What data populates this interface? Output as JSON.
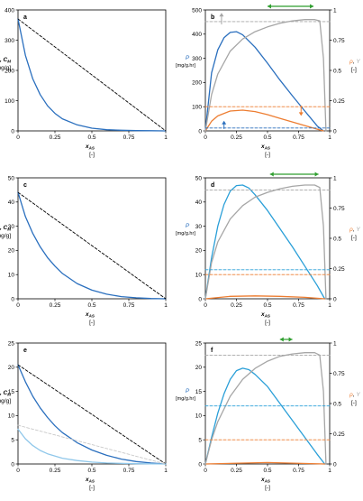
{
  "chart_data": [
    {
      "panel_label": "a",
      "type": "line",
      "ylabel": [
        "C*, C",
        "[mg/g]"
      ],
      "xlabel": [
        "x",
        "[-]"
      ],
      "xlim": [
        0,
        1
      ],
      "ylim": [
        0,
        400
      ],
      "xticks": [
        "0",
        "0.25",
        "0.5",
        "0.75",
        "1"
      ],
      "yticks": [
        "0",
        "100",
        "200",
        "300",
        "400"
      ],
      "series": [
        {
          "color": "#2a6fbe",
          "dash": false,
          "x": [
            0,
            0.05,
            0.1,
            0.15,
            0.2,
            0.25,
            0.3,
            0.4,
            0.5,
            0.6,
            0.7,
            0.8,
            0.9,
            1
          ],
          "y": [
            370,
            250,
            172,
            120,
            83,
            58,
            40,
            20,
            9,
            4,
            2,
            1,
            0.5,
            0
          ]
        },
        {
          "color": "#000000",
          "dash": true,
          "x": [
            0,
            1
          ],
          "y": [
            370,
            0
          ]
        }
      ]
    },
    {
      "panel_label": "b",
      "type": "line",
      "ylabel": [
        "P",
        "[mg/g.hr]"
      ],
      "y2label": [
        "ρ, Y",
        "[-]"
      ],
      "xlabel": [
        "x",
        "[-]"
      ],
      "xlim": [
        0,
        1
      ],
      "ylim": [
        0,
        500
      ],
      "y2lim": [
        0,
        1
      ],
      "xticks": [
        "0",
        "0.25",
        "0.5",
        "0.75",
        "1"
      ],
      "yticks": [
        "0",
        "100",
        "200",
        "300",
        "400",
        "500"
      ],
      "y2ticks": [
        "0",
        "0.25",
        "0.5",
        "0.75",
        "1"
      ],
      "arrow_range": [
        0.5,
        0.87
      ],
      "series": [
        {
          "axis": "left",
          "color": "#2a6fbe",
          "dash": false,
          "x": [
            0,
            0.05,
            0.1,
            0.15,
            0.2,
            0.25,
            0.3,
            0.4,
            0.5,
            0.6,
            0.7,
            0.8,
            0.9,
            0.95
          ],
          "y": [
            0,
            240,
            335,
            385,
            407,
            410,
            397,
            346,
            280,
            210,
            145,
            82,
            20,
            0
          ]
        },
        {
          "axis": "left",
          "color": "#ed7d31",
          "dash": false,
          "x": [
            0,
            0.05,
            0.1,
            0.2,
            0.3,
            0.4,
            0.5,
            0.6,
            0.7,
            0.8,
            0.9,
            0.95
          ],
          "y": [
            0,
            40,
            62,
            82,
            86,
            80,
            67,
            52,
            37,
            22,
            7,
            0
          ]
        },
        {
          "axis": "right",
          "color": "#a6a6a6",
          "dash": false,
          "x": [
            0,
            0.05,
            0.1,
            0.2,
            0.3,
            0.4,
            0.5,
            0.6,
            0.7,
            0.8,
            0.88,
            0.92,
            0.95,
            0.97
          ],
          "y": [
            0,
            0.3,
            0.47,
            0.66,
            0.76,
            0.82,
            0.86,
            0.89,
            0.91,
            0.92,
            0.92,
            0.91,
            0.6,
            0
          ]
        },
        {
          "axis": "left",
          "color": "#a6a6a6",
          "dash": true,
          "x": [
            0,
            1
          ],
          "y": [
            452,
            452
          ]
        },
        {
          "axis": "left",
          "color": "#ed7d31",
          "dash": true,
          "x": [
            0,
            1
          ],
          "y": [
            100,
            100
          ]
        },
        {
          "axis": "left",
          "color": "#2a6fbe",
          "dash": true,
          "x": [
            0,
            1
          ],
          "y": [
            12,
            12
          ]
        }
      ]
    },
    {
      "panel_label": "c",
      "type": "line",
      "ylabel": [
        "C*, C",
        "[mg/g]"
      ],
      "xlabel": [
        "x",
        "[-]"
      ],
      "xlim": [
        0,
        1
      ],
      "ylim": [
        0,
        50
      ],
      "xticks": [
        "0",
        "0.25",
        "0.5",
        "0.75",
        "1"
      ],
      "yticks": [
        "0",
        "10",
        "20",
        "30",
        "40",
        "50"
      ],
      "series": [
        {
          "color": "#2a6fbe",
          "dash": false,
          "x": [
            0,
            0.05,
            0.1,
            0.15,
            0.2,
            0.25,
            0.3,
            0.4,
            0.5,
            0.6,
            0.7,
            0.8,
            0.9,
            1
          ],
          "y": [
            44,
            34,
            27,
            21.5,
            17,
            13.5,
            10.5,
            6.3,
            3.6,
            1.9,
            0.9,
            0.4,
            0.1,
            0
          ]
        },
        {
          "color": "#000000",
          "dash": true,
          "x": [
            0,
            1
          ],
          "y": [
            44,
            0
          ]
        }
      ]
    },
    {
      "panel_label": "d",
      "type": "line",
      "ylabel": [
        "P",
        "[mg/g.hr]"
      ],
      "y2label": [
        "ρ, Y",
        "[-]"
      ],
      "xlabel": [
        "x",
        "[-]"
      ],
      "xlim": [
        0,
        1
      ],
      "ylim": [
        0,
        50
      ],
      "y2lim": [
        0,
        1
      ],
      "xticks": [
        "0",
        "0.25",
        "0.5",
        "0.75",
        "1"
      ],
      "yticks": [
        "0",
        "10",
        "20",
        "30",
        "40",
        "50"
      ],
      "y2ticks": [
        "0",
        "0.25",
        "0.5",
        "0.75",
        "1"
      ],
      "arrow_range": [
        0.52,
        0.91
      ],
      "series": [
        {
          "axis": "left",
          "color": "#2a9fd8",
          "dash": false,
          "x": [
            0,
            0.05,
            0.1,
            0.15,
            0.2,
            0.25,
            0.3,
            0.35,
            0.4,
            0.5,
            0.6,
            0.7,
            0.8,
            0.9,
            0.96
          ],
          "y": [
            0,
            17,
            30,
            39,
            44.5,
            46.8,
            47,
            45.8,
            43,
            36.5,
            29,
            21.5,
            13.5,
            5.5,
            0
          ]
        },
        {
          "axis": "left",
          "color": "#ed7d31",
          "dash": false,
          "x": [
            0,
            0.2,
            0.4,
            0.6,
            0.8,
            0.96
          ],
          "y": [
            0,
            1,
            1.2,
            1,
            0.6,
            0
          ]
        },
        {
          "axis": "right",
          "color": "#a6a6a6",
          "dash": false,
          "x": [
            0,
            0.05,
            0.1,
            0.2,
            0.3,
            0.4,
            0.5,
            0.6,
            0.7,
            0.8,
            0.88,
            0.92,
            0.95,
            0.97
          ],
          "y": [
            0,
            0.3,
            0.47,
            0.66,
            0.77,
            0.84,
            0.88,
            0.91,
            0.93,
            0.94,
            0.94,
            0.92,
            0.6,
            0
          ]
        },
        {
          "axis": "left",
          "color": "#a6a6a6",
          "dash": true,
          "x": [
            0,
            1
          ],
          "y": [
            45,
            45
          ]
        },
        {
          "axis": "left",
          "color": "#2a9fd8",
          "dash": true,
          "x": [
            0,
            1
          ],
          "y": [
            12,
            12
          ]
        },
        {
          "axis": "left",
          "color": "#ed7d31",
          "dash": true,
          "x": [
            0,
            1
          ],
          "y": [
            10,
            10
          ]
        }
      ]
    },
    {
      "panel_label": "e",
      "type": "line",
      "ylabel": [
        "C*, C",
        "[mg/g]"
      ],
      "xlabel": [
        "x",
        "[-]"
      ],
      "xlim": [
        0,
        1
      ],
      "ylim": [
        0,
        25
      ],
      "xticks": [
        "0",
        "0.25",
        "0.5",
        "0.75",
        "1"
      ],
      "yticks": [
        "0",
        "5",
        "10",
        "15",
        "20",
        "25"
      ],
      "series": [
        {
          "color": "#2a6fbe",
          "dash": false,
          "x": [
            0,
            0.05,
            0.1,
            0.15,
            0.2,
            0.25,
            0.3,
            0.4,
            0.5,
            0.6,
            0.7,
            0.8,
            0.9,
            1
          ],
          "y": [
            20.5,
            17,
            14,
            11.6,
            9.6,
            7.9,
            6.5,
            4.4,
            2.9,
            1.8,
            1,
            0.5,
            0.2,
            0
          ]
        },
        {
          "color": "#000000",
          "dash": true,
          "x": [
            0,
            1
          ],
          "y": [
            20.5,
            0
          ]
        },
        {
          "color": "#8fc7ea",
          "dash": false,
          "x": [
            0,
            0.05,
            0.1,
            0.15,
            0.2,
            0.3,
            0.4,
            0.5,
            0.6,
            0.8,
            1
          ],
          "y": [
            7.2,
            5.2,
            3.8,
            2.8,
            2.1,
            1.2,
            0.7,
            0.4,
            0.2,
            0.05,
            0
          ]
        },
        {
          "color": "#c9c9c9",
          "dash": true,
          "x": [
            0,
            1
          ],
          "y": [
            8,
            0
          ]
        }
      ]
    },
    {
      "panel_label": "f",
      "type": "line",
      "ylabel": [
        "P",
        "[mg/g.hr]"
      ],
      "y2label": [
        "ρ, Y",
        "[-]"
      ],
      "xlabel": [
        "x",
        "[-]"
      ],
      "xlim": [
        0,
        1
      ],
      "ylim": [
        0,
        25
      ],
      "y2lim": [
        0,
        1
      ],
      "xticks": [
        "0",
        "0.25",
        "0.5",
        "0.75",
        "1"
      ],
      "yticks": [
        "0",
        "5",
        "10",
        "15",
        "20",
        "25"
      ],
      "y2ticks": [
        "0",
        "0.25",
        "0.5",
        "0.75",
        "1"
      ],
      "arrow_range": [
        0.6,
        0.7
      ],
      "series": [
        {
          "axis": "left",
          "color": "#2a9fd8",
          "dash": false,
          "x": [
            0,
            0.05,
            0.1,
            0.15,
            0.2,
            0.25,
            0.3,
            0.35,
            0.4,
            0.5,
            0.6,
            0.7,
            0.8,
            0.9,
            0.96
          ],
          "y": [
            0,
            5.5,
            10.5,
            14.5,
            17.5,
            19.3,
            19.8,
            19.5,
            18.5,
            16,
            12.5,
            9,
            5.5,
            2,
            0
          ]
        },
        {
          "axis": "left",
          "color": "#ed7d31",
          "dash": false,
          "x": [
            0,
            0.5,
            0.96
          ],
          "y": [
            0,
            0.3,
            0
          ]
        },
        {
          "axis": "right",
          "color": "#a6a6a6",
          "dash": false,
          "x": [
            0,
            0.05,
            0.1,
            0.2,
            0.3,
            0.4,
            0.5,
            0.6,
            0.7,
            0.8,
            0.88,
            0.92,
            0.95,
            0.97
          ],
          "y": [
            0,
            0.2,
            0.35,
            0.56,
            0.7,
            0.79,
            0.85,
            0.89,
            0.91,
            0.92,
            0.92,
            0.9,
            0.6,
            0
          ]
        },
        {
          "axis": "left",
          "color": "#a6a6a6",
          "dash": true,
          "x": [
            0,
            1
          ],
          "y": [
            22.5,
            22.5
          ]
        },
        {
          "axis": "left",
          "color": "#2a9fd8",
          "dash": true,
          "x": [
            0,
            1
          ],
          "y": [
            12,
            12
          ]
        },
        {
          "axis": "left",
          "color": "#ed7d31",
          "dash": true,
          "x": [
            0,
            1
          ],
          "y": [
            5,
            5
          ]
        }
      ]
    }
  ],
  "colors": {
    "axis": "#000000",
    "blue": "#2a6fbe",
    "orange": "#ed7d31",
    "gray": "#a6a6a6",
    "green_arrow": "#2e9e2e"
  }
}
